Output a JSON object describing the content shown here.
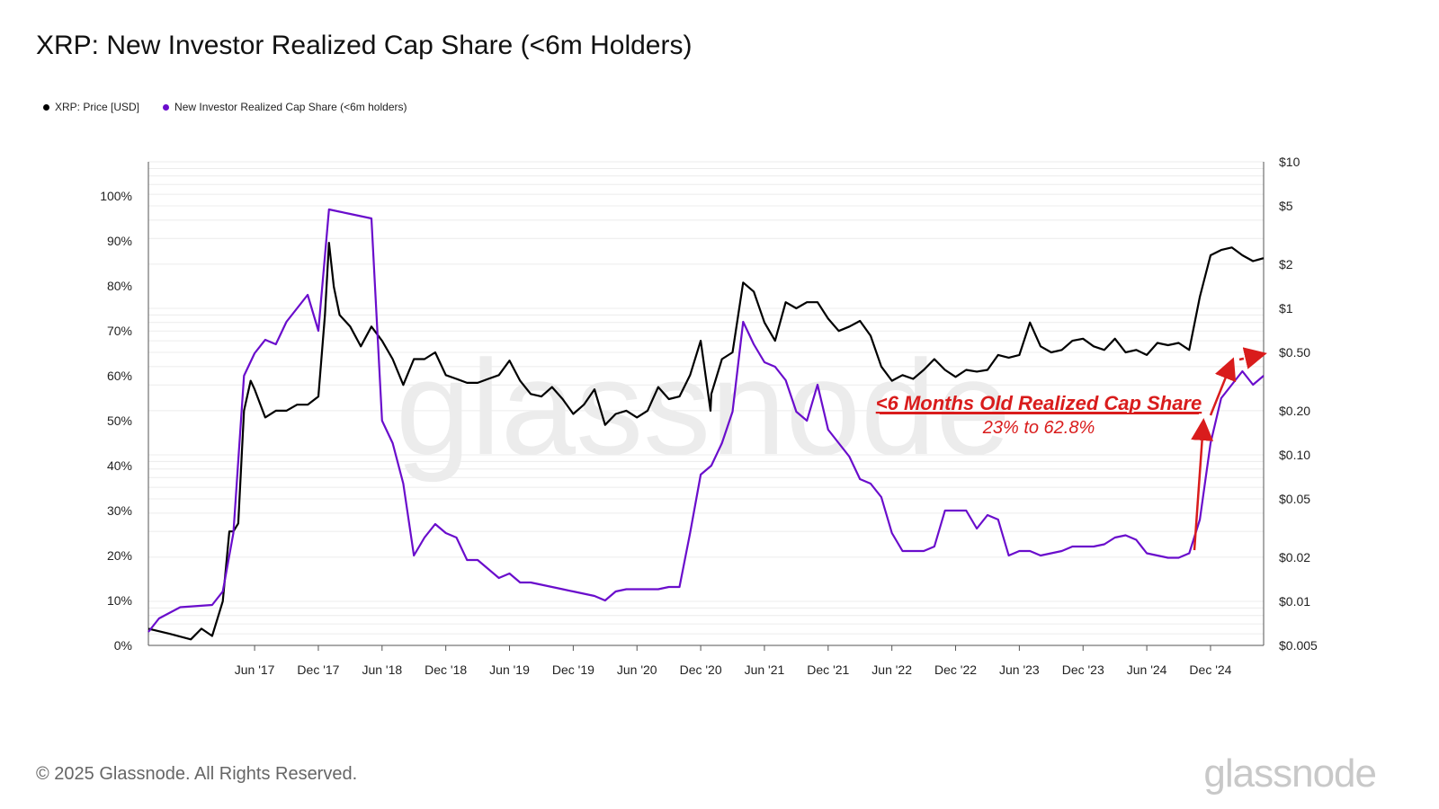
{
  "title": "XRP: New Investor Realized Cap Share (<6m Holders)",
  "legend": [
    {
      "label": "XRP: Price [USD]",
      "color": "#000000"
    },
    {
      "label": "New Investor Realized Cap Share (<6m holders)",
      "color": "#6a0dcc"
    }
  ],
  "footer": {
    "copyright": "© 2025 Glassnode. All Rights Reserved.",
    "logo": "glassnode"
  },
  "chart_data": {
    "type": "line",
    "x_ticks": [
      "Jun '17",
      "Dec '17",
      "Jun '18",
      "Dec '18",
      "Jun '19",
      "Dec '19",
      "Jun '20",
      "Dec '20",
      "Jun '21",
      "Dec '21",
      "Jun '22",
      "Dec '22",
      "Jun '23",
      "Dec '23",
      "Jun '24",
      "Dec '24"
    ],
    "x_range": [
      "2016-08",
      "2025-05"
    ],
    "left_axis": {
      "ticks": [
        "0%",
        "10%",
        "20%",
        "30%",
        "40%",
        "50%",
        "60%",
        "70%",
        "80%",
        "90%",
        "100%"
      ],
      "range": [
        0,
        100
      ]
    },
    "right_axis": {
      "scale": "log",
      "ticks": [
        "$0.005",
        "$0.01",
        "$0.02",
        "$0.05",
        "$0.10",
        "$0.20",
        "$0.50",
        "$1",
        "$2",
        "$5",
        "$10"
      ],
      "values": [
        0.005,
        0.01,
        0.02,
        0.05,
        0.1,
        0.2,
        0.5,
        1,
        2,
        5,
        10
      ]
    },
    "grid": true,
    "legend_position": "top-left",
    "watermark": "glassnode",
    "series": [
      {
        "name": "XRP: Price [USD]",
        "axis": "right",
        "color": "#000000",
        "points": [
          [
            "2016-08",
            0.0065
          ],
          [
            "2016-10",
            0.006
          ],
          [
            "2016-12",
            0.0055
          ],
          [
            "2017-01",
            0.0065
          ],
          [
            "2017-02",
            0.0058
          ],
          [
            "2017-03",
            0.01
          ],
          [
            "2017-03-20",
            0.03
          ],
          [
            "2017-04",
            0.03
          ],
          [
            "2017-04-15",
            0.034
          ],
          [
            "2017-05",
            0.2
          ],
          [
            "2017-05-20",
            0.32
          ],
          [
            "2017-06",
            0.28
          ],
          [
            "2017-07",
            0.18
          ],
          [
            "2017-08",
            0.2
          ],
          [
            "2017-09",
            0.2
          ],
          [
            "2017-10",
            0.22
          ],
          [
            "2017-11",
            0.22
          ],
          [
            "2017-12",
            0.25
          ],
          [
            "2017-12-20",
            0.9
          ],
          [
            "2018-01",
            2.8
          ],
          [
            "2018-01-15",
            1.4
          ],
          [
            "2018-02",
            0.9
          ],
          [
            "2018-03",
            0.75
          ],
          [
            "2018-04",
            0.55
          ],
          [
            "2018-05",
            0.75
          ],
          [
            "2018-06",
            0.6
          ],
          [
            "2018-07",
            0.45
          ],
          [
            "2018-08",
            0.3
          ],
          [
            "2018-09",
            0.45
          ],
          [
            "2018-10",
            0.45
          ],
          [
            "2018-11",
            0.5
          ],
          [
            "2018-12",
            0.35
          ],
          [
            "2019-01",
            0.33
          ],
          [
            "2019-02",
            0.31
          ],
          [
            "2019-03",
            0.31
          ],
          [
            "2019-04",
            0.33
          ],
          [
            "2019-05",
            0.35
          ],
          [
            "2019-06",
            0.44
          ],
          [
            "2019-07",
            0.32
          ],
          [
            "2019-08",
            0.26
          ],
          [
            "2019-09",
            0.25
          ],
          [
            "2019-10",
            0.29
          ],
          [
            "2019-11",
            0.24
          ],
          [
            "2019-12",
            0.19
          ],
          [
            "2020-01",
            0.22
          ],
          [
            "2020-02",
            0.28
          ],
          [
            "2020-03",
            0.16
          ],
          [
            "2020-04",
            0.19
          ],
          [
            "2020-05",
            0.2
          ],
          [
            "2020-06",
            0.18
          ],
          [
            "2020-07",
            0.2
          ],
          [
            "2020-08",
            0.29
          ],
          [
            "2020-09",
            0.24
          ],
          [
            "2020-10",
            0.25
          ],
          [
            "2020-11",
            0.35
          ],
          [
            "2020-12",
            0.6
          ],
          [
            "2020-12-29",
            0.2
          ],
          [
            "2021-01",
            0.26
          ],
          [
            "2021-02",
            0.45
          ],
          [
            "2021-03",
            0.5
          ],
          [
            "2021-04",
            1.5
          ],
          [
            "2021-05",
            1.3
          ],
          [
            "2021-06",
            0.8
          ],
          [
            "2021-07",
            0.6
          ],
          [
            "2021-08",
            1.1
          ],
          [
            "2021-09",
            1.0
          ],
          [
            "2021-10",
            1.1
          ],
          [
            "2021-11",
            1.1
          ],
          [
            "2021-12",
            0.85
          ],
          [
            "2022-01",
            0.7
          ],
          [
            "2022-02",
            0.75
          ],
          [
            "2022-03",
            0.82
          ],
          [
            "2022-04",
            0.65
          ],
          [
            "2022-05",
            0.4
          ],
          [
            "2022-06",
            0.32
          ],
          [
            "2022-07",
            0.35
          ],
          [
            "2022-08",
            0.33
          ],
          [
            "2022-09",
            0.38
          ],
          [
            "2022-10",
            0.45
          ],
          [
            "2022-11",
            0.38
          ],
          [
            "2022-12",
            0.34
          ],
          [
            "2023-01",
            0.38
          ],
          [
            "2023-02",
            0.37
          ],
          [
            "2023-03",
            0.38
          ],
          [
            "2023-04",
            0.48
          ],
          [
            "2023-05",
            0.46
          ],
          [
            "2023-06",
            0.48
          ],
          [
            "2023-07",
            0.8
          ],
          [
            "2023-08",
            0.55
          ],
          [
            "2023-09",
            0.5
          ],
          [
            "2023-10",
            0.52
          ],
          [
            "2023-11",
            0.6
          ],
          [
            "2023-12",
            0.62
          ],
          [
            "2024-01",
            0.55
          ],
          [
            "2024-02",
            0.52
          ],
          [
            "2024-03",
            0.62
          ],
          [
            "2024-04",
            0.5
          ],
          [
            "2024-05",
            0.52
          ],
          [
            "2024-06",
            0.48
          ],
          [
            "2024-07",
            0.58
          ],
          [
            "2024-08",
            0.56
          ],
          [
            "2024-09",
            0.58
          ],
          [
            "2024-10",
            0.52
          ],
          [
            "2024-11",
            1.2
          ],
          [
            "2024-12",
            2.3
          ],
          [
            "2025-01",
            2.5
          ],
          [
            "2025-02",
            2.6
          ],
          [
            "2025-03",
            2.3
          ],
          [
            "2025-04",
            2.1
          ],
          [
            "2025-05",
            2.2
          ]
        ]
      },
      {
        "name": "New Investor Realized Cap Share (<6m holders)",
        "axis": "left",
        "color": "#6a0dcc",
        "points": [
          [
            "2016-08",
            3
          ],
          [
            "2016-09",
            6
          ],
          [
            "2016-11",
            8.5
          ],
          [
            "2017-02",
            9
          ],
          [
            "2017-03",
            12
          ],
          [
            "2017-04",
            25
          ],
          [
            "2017-05",
            60
          ],
          [
            "2017-06",
            65
          ],
          [
            "2017-07",
            68
          ],
          [
            "2017-08",
            67
          ],
          [
            "2017-09",
            72
          ],
          [
            "2017-10",
            75
          ],
          [
            "2017-11",
            78
          ],
          [
            "2017-12",
            70
          ],
          [
            "2018-01",
            97
          ],
          [
            "2018-02",
            96.5
          ],
          [
            "2018-03",
            96
          ],
          [
            "2018-04",
            95.5
          ],
          [
            "2018-05",
            95
          ],
          [
            "2018-06",
            50
          ],
          [
            "2018-07",
            45
          ],
          [
            "2018-08",
            36
          ],
          [
            "2018-09",
            20
          ],
          [
            "2018-10",
            24
          ],
          [
            "2018-11",
            27
          ],
          [
            "2018-12",
            25
          ],
          [
            "2019-01",
            24
          ],
          [
            "2019-02",
            19
          ],
          [
            "2019-03",
            19
          ],
          [
            "2019-04",
            17
          ],
          [
            "2019-05",
            15
          ],
          [
            "2019-06",
            16
          ],
          [
            "2019-07",
            14
          ],
          [
            "2019-08",
            14
          ],
          [
            "2019-09",
            13.5
          ],
          [
            "2019-10",
            13
          ],
          [
            "2019-11",
            12.5
          ],
          [
            "2019-12",
            12
          ],
          [
            "2020-01",
            11.5
          ],
          [
            "2020-02",
            11
          ],
          [
            "2020-03",
            10
          ],
          [
            "2020-04",
            12
          ],
          [
            "2020-05",
            12.5
          ],
          [
            "2020-06",
            12.5
          ],
          [
            "2020-07",
            12.5
          ],
          [
            "2020-08",
            12.5
          ],
          [
            "2020-09",
            13
          ],
          [
            "2020-10",
            13
          ],
          [
            "2020-11",
            25
          ],
          [
            "2020-12",
            38
          ],
          [
            "2021-01",
            40
          ],
          [
            "2021-02",
            45
          ],
          [
            "2021-03",
            52
          ],
          [
            "2021-04",
            72
          ],
          [
            "2021-05",
            67
          ],
          [
            "2021-06",
            63
          ],
          [
            "2021-07",
            62
          ],
          [
            "2021-08",
            59
          ],
          [
            "2021-09",
            52
          ],
          [
            "2021-10",
            50
          ],
          [
            "2021-11",
            58
          ],
          [
            "2021-12",
            48
          ],
          [
            "2022-01",
            45
          ],
          [
            "2022-02",
            42
          ],
          [
            "2022-03",
            37
          ],
          [
            "2022-04",
            36
          ],
          [
            "2022-05",
            33
          ],
          [
            "2022-06",
            25
          ],
          [
            "2022-07",
            21
          ],
          [
            "2022-08",
            21
          ],
          [
            "2022-09",
            21
          ],
          [
            "2022-10",
            22
          ],
          [
            "2022-11",
            30
          ],
          [
            "2022-12",
            30
          ],
          [
            "2023-01",
            30
          ],
          [
            "2023-02",
            26
          ],
          [
            "2023-03",
            29
          ],
          [
            "2023-04",
            28
          ],
          [
            "2023-05",
            20
          ],
          [
            "2023-06",
            21
          ],
          [
            "2023-07",
            21
          ],
          [
            "2023-08",
            20
          ],
          [
            "2023-09",
            20.5
          ],
          [
            "2023-10",
            21
          ],
          [
            "2023-11",
            22
          ],
          [
            "2023-12",
            22
          ],
          [
            "2024-01",
            22
          ],
          [
            "2024-02",
            22.5
          ],
          [
            "2024-03",
            24
          ],
          [
            "2024-04",
            24.5
          ],
          [
            "2024-05",
            23.5
          ],
          [
            "2024-06",
            20.5
          ],
          [
            "2024-07",
            20
          ],
          [
            "2024-08",
            19.5
          ],
          [
            "2024-09",
            19.5
          ],
          [
            "2024-10",
            20.5
          ],
          [
            "2024-11",
            28
          ],
          [
            "2024-12",
            45
          ],
          [
            "2025-01",
            55
          ],
          [
            "2025-02",
            58
          ],
          [
            "2025-03",
            61
          ],
          [
            "2025-04",
            58
          ],
          [
            "2025-05",
            60
          ]
        ]
      }
    ],
    "annotation": {
      "title": "<6 Months Old Realized Cap Share",
      "subtitle": "23% to 62.8%",
      "color": "#d91c1c"
    }
  }
}
